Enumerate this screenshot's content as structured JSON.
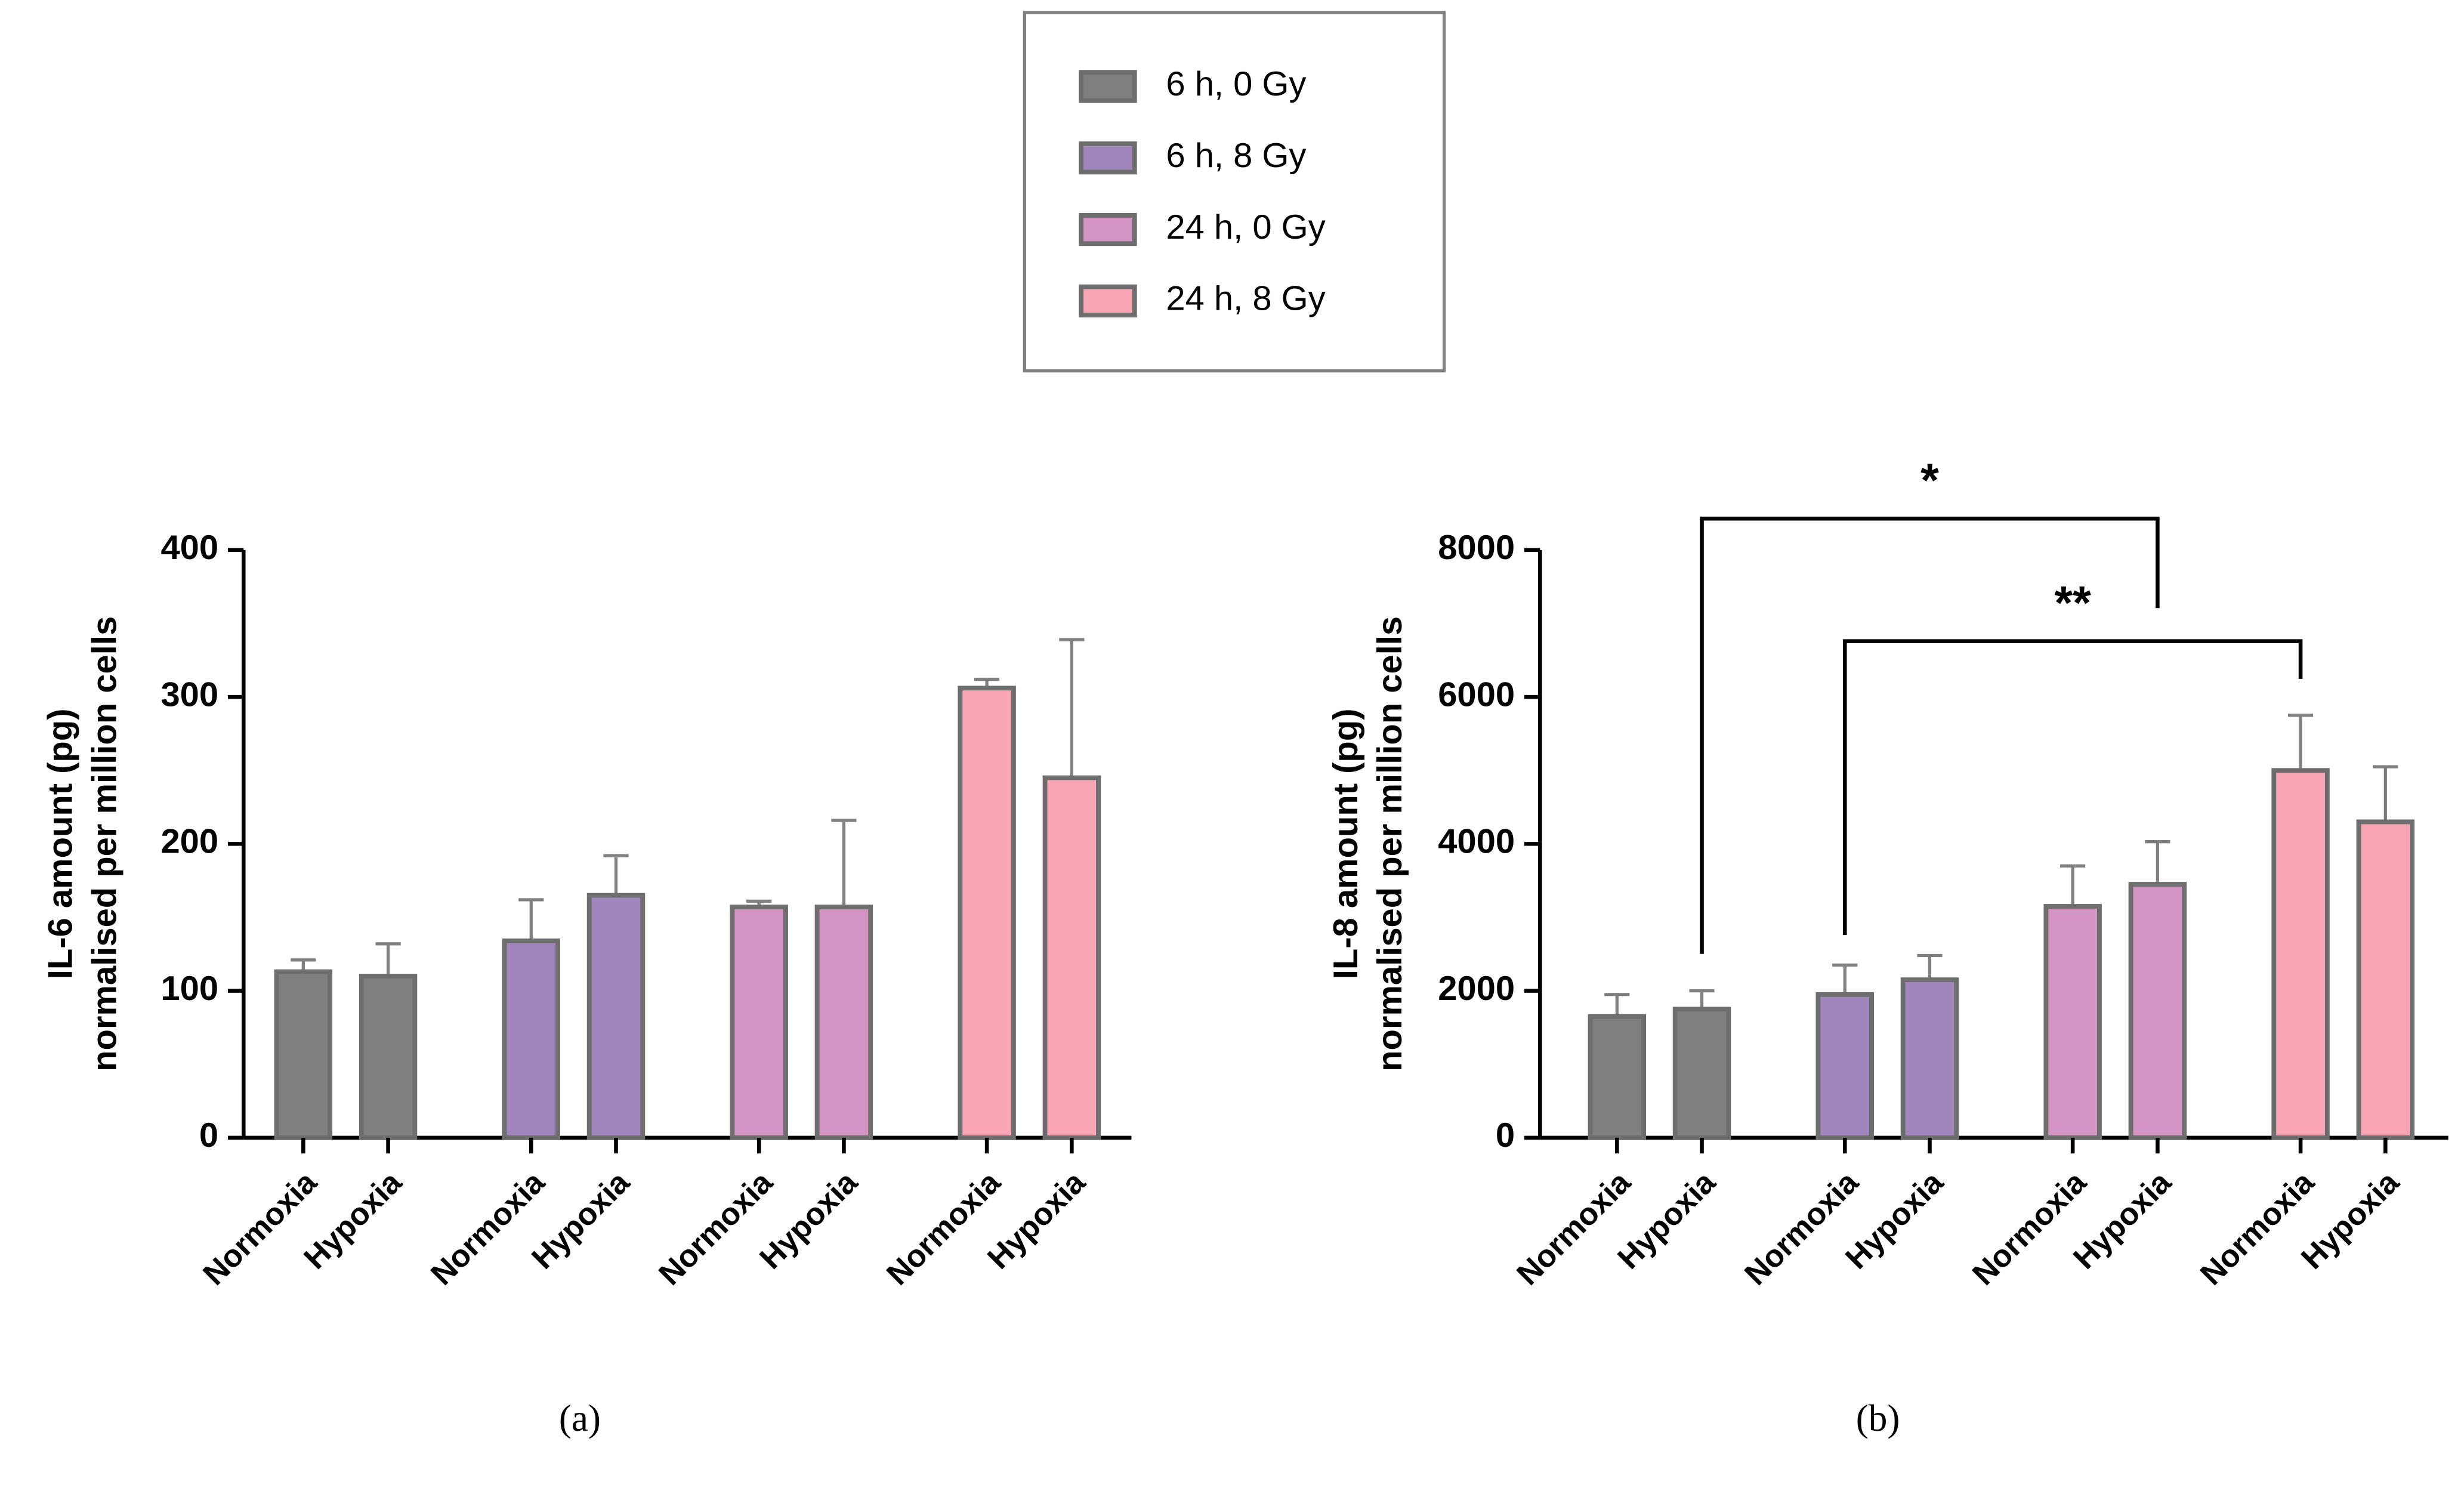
{
  "legend": [
    {
      "name": "6 h, 0 Gy",
      "color": "#7f7f7f"
    },
    {
      "name": "6 h, 8 Gy",
      "color": "#a086bc"
    },
    {
      "name": "24 h, 0 Gy",
      "color": "#d595c4"
    },
    {
      "name": "24 h, 8 Gy",
      "color": "#f8a5b5"
    }
  ],
  "chart_data": [
    {
      "type": "bar",
      "caption": "(a)",
      "ylabel": [
        "IL-6 amount (pg)",
        "normalised per million cells"
      ],
      "categories": [
        "Normoxia",
        "Hypoxia"
      ],
      "series": [
        {
          "values": [
            113,
            110
          ],
          "errors": [
            8,
            22
          ]
        },
        {
          "values": [
            134,
            165
          ],
          "errors": [
            28,
            27
          ]
        },
        {
          "values": [
            157,
            157
          ],
          "errors": [
            4,
            59
          ]
        },
        {
          "values": [
            306,
            245
          ],
          "errors": [
            6,
            94
          ]
        }
      ],
      "ylim": [
        0,
        400
      ],
      "yticks": [
        0,
        100,
        200,
        300,
        400
      ]
    },
    {
      "type": "bar",
      "caption": "(b)",
      "ylabel": [
        "IL-8 amount (pg)",
        "normalised per million cells"
      ],
      "categories": [
        "Normoxia",
        "Hypoxia"
      ],
      "series": [
        {
          "values": [
            1650,
            1750
          ],
          "errors": [
            300,
            250
          ]
        },
        {
          "values": [
            1950,
            2150
          ],
          "errors": [
            400,
            330
          ]
        },
        {
          "values": [
            3150,
            3450
          ],
          "errors": [
            550,
            580
          ]
        },
        {
          "values": [
            5000,
            4300
          ],
          "errors": [
            750,
            750
          ]
        }
      ],
      "ylim": [
        0,
        8000
      ],
      "yticks": [
        0,
        2000,
        4000,
        6000,
        8000
      ],
      "annotations": [
        "*",
        "**"
      ]
    }
  ]
}
